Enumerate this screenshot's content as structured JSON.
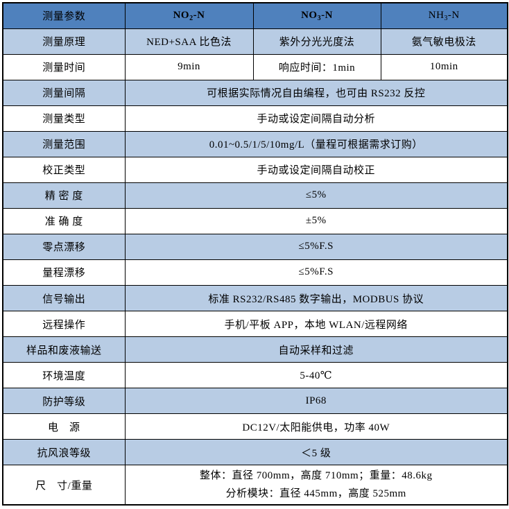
{
  "colors": {
    "header_bg": "#4f81bd",
    "band_bg": "#b8cce4",
    "border": "#000000",
    "text": "#000000"
  },
  "table": {
    "header": {
      "param_label": "测量参数",
      "columns": [
        {
          "prefix": "NO",
          "sub": "2",
          "suffix": "-N"
        },
        {
          "prefix": "NO",
          "sub": "3",
          "suffix": "-N"
        },
        {
          "prefix": "NH",
          "sub": "3",
          "suffix": "-N"
        }
      ]
    },
    "rows": [
      {
        "label": "测量原理",
        "cells": [
          "NED+SAA 比色法",
          "紫外分光光度法",
          "氨气敏电极法"
        ]
      },
      {
        "label": "测量时间",
        "cells": [
          "9min",
          "响应时间：1min",
          "10min"
        ]
      },
      {
        "label": "测量间隔",
        "value": "可根据实际情况自由编程，也可由 RS232 反控"
      },
      {
        "label": "测量类型",
        "value": "手动或设定间隔自动分析"
      },
      {
        "label": "测量范围",
        "value": "0.01~0.5/1/5/10mg/L（量程可根据需求订购）"
      },
      {
        "label": "校正类型",
        "value": "手动或设定间隔自动校正"
      },
      {
        "label": "精 密 度",
        "value": "≤5%"
      },
      {
        "label": "准 确 度",
        "value": "±5%"
      },
      {
        "label": "零点漂移",
        "value": "≤5%F.S"
      },
      {
        "label": "量程漂移",
        "value": "≤5%F.S"
      },
      {
        "label": "信号输出",
        "value": "标准 RS232/RS485 数字输出，MODBUS 协议"
      },
      {
        "label": "远程操作",
        "value": "手机/平板 APP，本地 WLAN/远程网络"
      },
      {
        "label": "样品和废液输送",
        "value": "自动采样和过滤"
      },
      {
        "label": "环境温度",
        "value": "5-40℃"
      },
      {
        "label": "防护等级",
        "value": "IP68"
      },
      {
        "label": "电　源",
        "value": "DC12V/太阳能供电，功率 40W"
      },
      {
        "label": "抗风浪等级",
        "value": "＜5 级"
      },
      {
        "label": "尺　寸/重量",
        "lines": [
          "整体：直径 700mm，高度 710mm；重量：48.6kg",
          "分析模块：直径 445mm，高度 525mm"
        ]
      }
    ]
  }
}
